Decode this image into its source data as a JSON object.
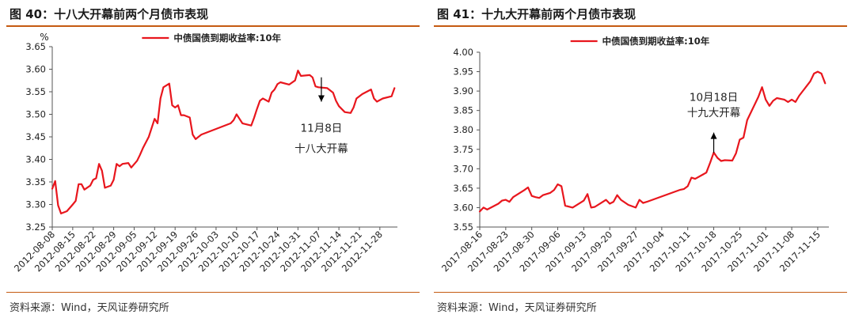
{
  "panels": [
    {
      "title": "图 40：十八大开幕前两个月债市表现",
      "source": "资料来源：Wind，天风证券研究所",
      "chart_data": {
        "type": "line",
        "ylabel": "%",
        "ylim": [
          3.25,
          3.65
        ],
        "yticks": [
          3.25,
          3.3,
          3.35,
          3.4,
          3.45,
          3.5,
          3.55,
          3.6,
          3.65
        ],
        "ytick_decimals": 2,
        "xlim": [
          "2012-08-08",
          "2012-12-04"
        ],
        "xticks": [
          "2012-08-08",
          "2012-08-15",
          "2012-08-22",
          "2012-08-29",
          "2012-09-05",
          "2012-09-12",
          "2012-09-19",
          "2012-09-26",
          "2012-10-03",
          "2012-10-10",
          "2012-10-17",
          "2012-10-24",
          "2012-10-31",
          "2012-11-07",
          "2012-11-14",
          "2012-11-21",
          "2012-11-28"
        ],
        "legend_position": "top-center",
        "grid": false,
        "line_color": "#e8161d",
        "series": [
          {
            "name": "中债国债到期收益率:10年",
            "points": [
              [
                "2012-08-08",
                3.335
              ],
              [
                "2012-08-09",
                3.352
              ],
              [
                "2012-08-10",
                3.298
              ],
              [
                "2012-08-11",
                3.28
              ],
              [
                "2012-08-13",
                3.285
              ],
              [
                "2012-08-15",
                3.3
              ],
              [
                "2012-08-16",
                3.308
              ],
              [
                "2012-08-17",
                3.345
              ],
              [
                "2012-08-18",
                3.345
              ],
              [
                "2012-08-19",
                3.333
              ],
              [
                "2012-08-21",
                3.342
              ],
              [
                "2012-08-22",
                3.355
              ],
              [
                "2012-08-23",
                3.358
              ],
              [
                "2012-08-24",
                3.39
              ],
              [
                "2012-08-25",
                3.375
              ],
              [
                "2012-08-26",
                3.337
              ],
              [
                "2012-08-28",
                3.342
              ],
              [
                "2012-08-29",
                3.355
              ],
              [
                "2012-08-30",
                3.39
              ],
              [
                "2012-08-31",
                3.385
              ],
              [
                "2012-09-01",
                3.39
              ],
              [
                "2012-09-03",
                3.392
              ],
              [
                "2012-09-04",
                3.382
              ],
              [
                "2012-09-06",
                3.397
              ],
              [
                "2012-09-07",
                3.41
              ],
              [
                "2012-09-08",
                3.425
              ],
              [
                "2012-09-10",
                3.45
              ],
              [
                "2012-09-11",
                3.47
              ],
              [
                "2012-09-12",
                3.49
              ],
              [
                "2012-09-13",
                3.48
              ],
              [
                "2012-09-14",
                3.535
              ],
              [
                "2012-09-15",
                3.56
              ],
              [
                "2012-09-17",
                3.568
              ],
              [
                "2012-09-18",
                3.52
              ],
              [
                "2012-09-19",
                3.515
              ],
              [
                "2012-09-20",
                3.52
              ],
              [
                "2012-09-21",
                3.498
              ],
              [
                "2012-09-22",
                3.498
              ],
              [
                "2012-09-24",
                3.493
              ],
              [
                "2012-09-25",
                3.455
              ],
              [
                "2012-09-26",
                3.445
              ],
              [
                "2012-09-28",
                3.455
              ],
              [
                "2012-10-08",
                3.48
              ],
              [
                "2012-10-09",
                3.487
              ],
              [
                "2012-10-10",
                3.5
              ],
              [
                "2012-10-11",
                3.49
              ],
              [
                "2012-10-12",
                3.48
              ],
              [
                "2012-10-15",
                3.475
              ],
              [
                "2012-10-16",
                3.492
              ],
              [
                "2012-10-17",
                3.512
              ],
              [
                "2012-10-18",
                3.53
              ],
              [
                "2012-10-19",
                3.535
              ],
              [
                "2012-10-21",
                3.528
              ],
              [
                "2012-10-22",
                3.548
              ],
              [
                "2012-10-23",
                3.555
              ],
              [
                "2012-10-24",
                3.567
              ],
              [
                "2012-10-25",
                3.571
              ],
              [
                "2012-10-28",
                3.566
              ],
              [
                "2012-10-30",
                3.575
              ],
              [
                "2012-10-31",
                3.597
              ],
              [
                "2012-11-01",
                3.585
              ],
              [
                "2012-11-04",
                3.587
              ],
              [
                "2012-11-05",
                3.582
              ],
              [
                "2012-11-06",
                3.562
              ],
              [
                "2012-11-07",
                3.56
              ],
              [
                "2012-11-10",
                3.558
              ],
              [
                "2012-11-12",
                3.548
              ],
              [
                "2012-11-13",
                3.53
              ],
              [
                "2012-11-14",
                3.518
              ],
              [
                "2012-11-16",
                3.505
              ],
              [
                "2012-11-18",
                3.503
              ],
              [
                "2012-11-19",
                3.515
              ],
              [
                "2012-11-20",
                3.535
              ],
              [
                "2012-11-22",
                3.545
              ],
              [
                "2012-11-25",
                3.555
              ],
              [
                "2012-11-26",
                3.535
              ],
              [
                "2012-11-27",
                3.528
              ],
              [
                "2012-11-29",
                3.535
              ],
              [
                "2012-12-02",
                3.54
              ],
              [
                "2012-12-03",
                3.558
              ]
            ]
          }
        ],
        "annotation": {
          "lines": [
            "11月8日",
            "十八大开幕"
          ],
          "x": "2012-11-08",
          "arrow_from": 3.582,
          "arrow_to": 3.528,
          "arrow_direction": "down",
          "text_y_top": 3.47,
          "text_y_bottom": 3.425
        }
      }
    },
    {
      "title": "图 41：十九大开幕前两个月债市表现",
      "source": "资料来源：Wind，天风证券研究所",
      "chart_data": {
        "type": "line",
        "ylabel": "",
        "ylim": [
          3.55,
          4.0
        ],
        "yticks": [
          3.55,
          3.6,
          3.65,
          3.7,
          3.75,
          3.8,
          3.85,
          3.9,
          3.95,
          4.0
        ],
        "ytick_decimals": 2,
        "xlim": [
          "2017-08-16",
          "2017-11-18"
        ],
        "xticks": [
          "2017-08-16",
          "2017-08-23",
          "2017-08-30",
          "2017-09-06",
          "2017-09-13",
          "2017-09-20",
          "2017-09-27",
          "2017-10-04",
          "2017-10-11",
          "2017-10-18",
          "2017-10-25",
          "2017-11-01",
          "2017-11-08",
          "2017-11-15"
        ],
        "legend_position": "top-center",
        "grid": false,
        "line_color": "#e8161d",
        "series": [
          {
            "name": "中债国债到期收益率:10年",
            "points": [
              [
                "2017-08-16",
                3.59
              ],
              [
                "2017-08-17",
                3.6
              ],
              [
                "2017-08-18",
                3.595
              ],
              [
                "2017-08-21",
                3.61
              ],
              [
                "2017-08-22",
                3.618
              ],
              [
                "2017-08-23",
                3.62
              ],
              [
                "2017-08-24",
                3.615
              ],
              [
                "2017-08-25",
                3.627
              ],
              [
                "2017-08-28",
                3.645
              ],
              [
                "2017-08-29",
                3.652
              ],
              [
                "2017-08-30",
                3.63
              ],
              [
                "2017-08-31",
                3.627
              ],
              [
                "2017-09-01",
                3.625
              ],
              [
                "2017-09-02",
                3.632
              ],
              [
                "2017-09-04",
                3.638
              ],
              [
                "2017-09-05",
                3.645
              ],
              [
                "2017-09-06",
                3.66
              ],
              [
                "2017-09-07",
                3.655
              ],
              [
                "2017-09-08",
                3.605
              ],
              [
                "2017-09-10",
                3.6
              ],
              [
                "2017-09-12",
                3.612
              ],
              [
                "2017-09-13",
                3.618
              ],
              [
                "2017-09-14",
                3.635
              ],
              [
                "2017-09-15",
                3.6
              ],
              [
                "2017-09-16",
                3.602
              ],
              [
                "2017-09-19",
                3.62
              ],
              [
                "2017-09-20",
                3.61
              ],
              [
                "2017-09-21",
                3.615
              ],
              [
                "2017-09-22",
                3.632
              ],
              [
                "2017-09-23",
                3.62
              ],
              [
                "2017-09-25",
                3.607
              ],
              [
                "2017-09-27",
                3.6
              ],
              [
                "2017-09-28",
                3.62
              ],
              [
                "2017-09-29",
                3.612
              ],
              [
                "2017-09-30",
                3.615
              ],
              [
                "2017-10-09",
                3.646
              ],
              [
                "2017-10-10",
                3.648
              ],
              [
                "2017-10-11",
                3.655
              ],
              [
                "2017-10-12",
                3.677
              ],
              [
                "2017-10-13",
                3.674
              ],
              [
                "2017-10-16",
                3.69
              ],
              [
                "2017-10-17",
                3.715
              ],
              [
                "2017-10-18",
                3.742
              ],
              [
                "2017-10-19",
                3.728
              ],
              [
                "2017-10-20",
                3.72
              ],
              [
                "2017-10-21",
                3.722
              ],
              [
                "2017-10-23",
                3.721
              ],
              [
                "2017-10-24",
                3.74
              ],
              [
                "2017-10-25",
                3.775
              ],
              [
                "2017-10-26",
                3.78
              ],
              [
                "2017-10-27",
                3.825
              ],
              [
                "2017-10-30",
                3.885
              ],
              [
                "2017-10-31",
                3.91
              ],
              [
                "2017-11-01",
                3.878
              ],
              [
                "2017-11-02",
                3.862
              ],
              [
                "2017-11-03",
                3.875
              ],
              [
                "2017-11-04",
                3.882
              ],
              [
                "2017-11-06",
                3.878
              ],
              [
                "2017-11-07",
                3.872
              ],
              [
                "2017-11-08",
                3.878
              ],
              [
                "2017-11-09",
                3.872
              ],
              [
                "2017-11-10",
                3.888
              ],
              [
                "2017-11-13",
                3.925
              ],
              [
                "2017-11-14",
                3.945
              ],
              [
                "2017-11-15",
                3.95
              ],
              [
                "2017-11-16",
                3.945
              ],
              [
                "2017-11-17",
                3.92
              ]
            ]
          }
        ],
        "annotation": {
          "lines": [
            "10月18日",
            "十九大开幕"
          ],
          "x": "2017-10-18",
          "arrow_from": 3.741,
          "arrow_to": 3.793,
          "arrow_direction": "up",
          "text_y_top": 3.885,
          "text_y_bottom": 3.845
        }
      }
    }
  ]
}
